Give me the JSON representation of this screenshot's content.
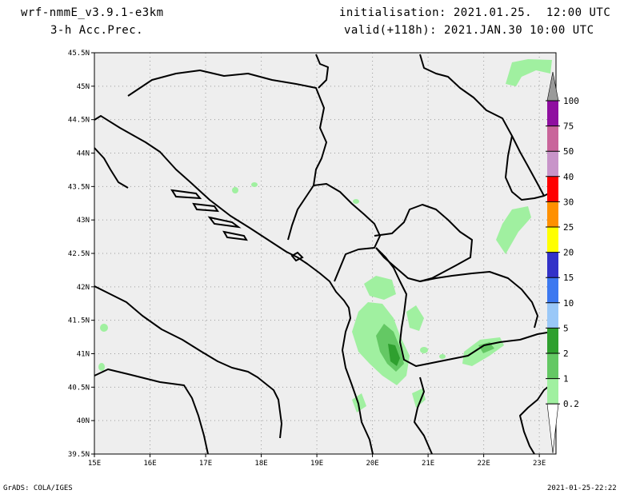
{
  "header": {
    "model": "wrf-nmmE_v3.9.1-e3km",
    "field": "3-h Acc.Prec.",
    "init": "initialisation: 2021.01.25.  12:00 UTC",
    "valid": "valid(+118h): 2021.JAN.30 10:00 UTC"
  },
  "axes": {
    "lat_ticks": [
      "45.5N",
      "45N",
      "44.5N",
      "44N",
      "43.5N",
      "43N",
      "42.5N",
      "42N",
      "41.5N",
      "41N",
      "40.5N",
      "40N",
      "39.5N"
    ],
    "lon_ticks": [
      "15E",
      "16E",
      "17E",
      "18E",
      "19E",
      "20E",
      "21E",
      "22E",
      "23E"
    ]
  },
  "legend": {
    "labels": [
      "100",
      "75",
      "50",
      "40",
      "30",
      "25",
      "20",
      "15",
      "10",
      "5",
      "2",
      "1",
      "0.2"
    ],
    "colors": [
      "#9a9a9a",
      "#8f0fa0",
      "#c9659b",
      "#c894c9",
      "#ff0000",
      "#ff9000",
      "#ffff00",
      "#3232c8",
      "#3c78f0",
      "#9ac8f8",
      "#2fa02f",
      "#64c864",
      "#a0f0a0",
      "#ffffff"
    ]
  },
  "footer": {
    "left": "GrADS: COLA/IGES",
    "right": "2021-01-25-22:22"
  }
}
